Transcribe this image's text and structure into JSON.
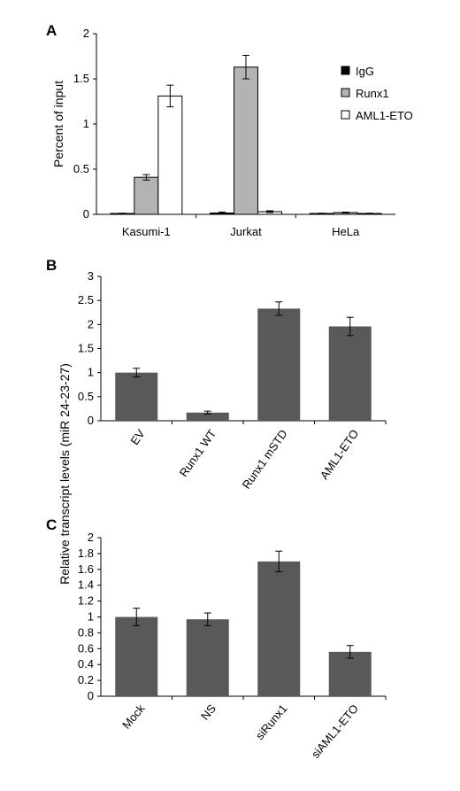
{
  "figure": {
    "shared_ylabel": "Relative transcript levels (miR 24-23-27)"
  },
  "chart_data": [
    {
      "panel": "A",
      "type": "bar",
      "ylabel": "Percent of input",
      "ylim": [
        0,
        2
      ],
      "yticks": [
        "0",
        "0.5",
        "1",
        "1.5",
        "2"
      ],
      "categories": [
        "Kasumi-1",
        "Jurkat",
        "HeLa"
      ],
      "legend_position": "right",
      "series": [
        {
          "name": "IgG",
          "color": "#000000",
          "values": [
            0.01,
            0.015,
            0.01
          ],
          "errors": [
            0.003,
            0.01,
            0.003
          ]
        },
        {
          "name": "Runx1",
          "color": "#b3b3b3",
          "values": [
            0.41,
            1.63,
            0.02
          ],
          "errors": [
            0.03,
            0.13,
            0.005
          ]
        },
        {
          "name": "AML1-ETO",
          "color": "#ffffff",
          "values": [
            1.31,
            0.03,
            0.01
          ],
          "errors": [
            0.12,
            0.01,
            0.003
          ]
        }
      ]
    },
    {
      "panel": "B",
      "type": "bar",
      "ylim": [
        0,
        3
      ],
      "yticks": [
        "0",
        "0.5",
        "1",
        "1.5",
        "2",
        "2.5",
        "3"
      ],
      "categories": [
        "EV",
        "Runx1 WT",
        "Runx1 mSTD",
        "AML1-ETO"
      ],
      "color": "#595959",
      "values": [
        1.0,
        0.17,
        2.33,
        1.96
      ],
      "errors": [
        0.09,
        0.03,
        0.14,
        0.19
      ]
    },
    {
      "panel": "C",
      "type": "bar",
      "ylim": [
        0,
        2
      ],
      "yticks": [
        "0",
        "0.2",
        "0.4",
        "0.6",
        "0.8",
        "1",
        "1.2",
        "1.4",
        "1.6",
        "1.8",
        "2"
      ],
      "categories": [
        "Mock",
        "NS",
        "siRunx1",
        "siAML1-ETO"
      ],
      "color": "#595959",
      "values": [
        1.0,
        0.97,
        1.7,
        0.56
      ],
      "errors": [
        0.11,
        0.08,
        0.13,
        0.08
      ]
    }
  ]
}
